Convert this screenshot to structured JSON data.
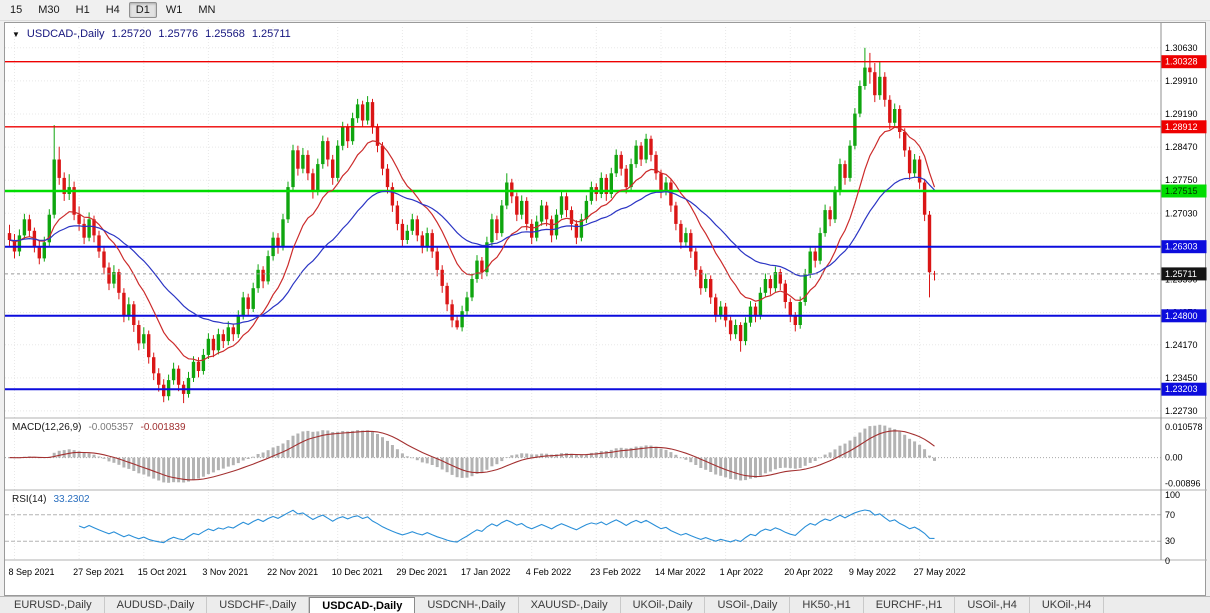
{
  "toolbar": {
    "timeframes": [
      "15",
      "M30",
      "H1",
      "H4",
      "D1",
      "W1",
      "MN"
    ],
    "active": "D1"
  },
  "icons": {
    "collapse": "▼"
  },
  "chart_header": {
    "symbol_label": "USDCAD-,Daily",
    "open": "1.25720",
    "high": "1.25776",
    "low": "1.25568",
    "close": "1.25711"
  },
  "colors": {
    "candle_up": "#0fa50f",
    "candle_down": "#da1616",
    "ma_fast": "#cc2b2b",
    "ma_slow": "#2b35c4",
    "level_red": "#ee0000",
    "level_green": "#00dd00",
    "level_blue": "#0c0cdd",
    "badge_current": "#141414",
    "macd_hist": "#b3b3b3",
    "macd_signal": "#a33030",
    "rsi_line": "#2a8fd8",
    "grid": "#e8e8e8"
  },
  "chart_data": {
    "type": "candlestick",
    "symbol": "USDCAD",
    "timeframe": "Daily",
    "title": "USDCAD-,Daily  O 1.25720  H 1.25776  L 1.25568  C 1.25711",
    "x_labels": [
      "8 Sep 2021",
      "27 Sep 2021",
      "15 Oct 2021",
      "3 Nov 2021",
      "22 Nov 2021",
      "10 Dec 2021",
      "29 Dec 2021",
      "17 Jan 2022",
      "4 Feb 2022",
      "23 Feb 2022",
      "14 Mar 2022",
      "1 Apr 2022",
      "20 Apr 2022",
      "9 May 2022",
      "27 May 2022"
    ],
    "x_label_indices": [
      1,
      14,
      27,
      40,
      53,
      66,
      79,
      92,
      105,
      118,
      131,
      144,
      157,
      170,
      183
    ],
    "price_axis": {
      "ticks": [
        "1.30630",
        "1.29910",
        "1.29190",
        "1.28470",
        "1.27750",
        "1.27030",
        "1.26310",
        "1.25590",
        "1.24870",
        "1.24170",
        "1.23450",
        "1.22730"
      ],
      "min": 1.2262,
      "max": 1.3104
    },
    "levels": [
      {
        "price": 1.30328,
        "label": "1.30328",
        "color": "red"
      },
      {
        "price": 1.28912,
        "label": "1.28912",
        "color": "red"
      },
      {
        "price": 1.27515,
        "label": "1.27515",
        "color": "green"
      },
      {
        "price": 1.26303,
        "label": "1.26303",
        "color": "blue"
      },
      {
        "price": 1.248,
        "label": "1.24800",
        "color": "blue"
      },
      {
        "price": 1.23203,
        "label": "1.23203",
        "color": "blue"
      }
    ],
    "current_price": {
      "value": 1.25711,
      "label": "1.25711"
    },
    "moving_averages": [
      {
        "name": "fast-ma",
        "type": "ema",
        "period": 13,
        "color_key": "ma_fast"
      },
      {
        "name": "slow-ma",
        "type": "ema",
        "period": 34,
        "color_key": "ma_slow"
      }
    ],
    "candles": [
      [
        1.266,
        1.2678,
        1.2632,
        1.2645
      ],
      [
        1.2645,
        1.2658,
        1.2605,
        1.262
      ],
      [
        1.262,
        1.2668,
        1.261,
        1.2655
      ],
      [
        1.2655,
        1.2702,
        1.2648,
        1.269
      ],
      [
        1.269,
        1.27,
        1.2652,
        1.2665
      ],
      [
        1.2665,
        1.2672,
        1.2618,
        1.263
      ],
      [
        1.263,
        1.2642,
        1.2592,
        1.2605
      ],
      [
        1.2605,
        1.2652,
        1.2598,
        1.264
      ],
      [
        1.264,
        1.2712,
        1.2632,
        1.27
      ],
      [
        1.27,
        1.2895,
        1.2692,
        1.282
      ],
      [
        1.282,
        1.2848,
        1.2765,
        1.278
      ],
      [
        1.278,
        1.2792,
        1.273,
        1.2745
      ],
      [
        1.2745,
        1.2788,
        1.2732,
        1.276
      ],
      [
        1.276,
        1.2772,
        1.2688,
        1.27
      ],
      [
        1.27,
        1.2718,
        1.2665,
        1.268
      ],
      [
        1.268,
        1.2692,
        1.2636,
        1.265
      ],
      [
        1.265,
        1.2705,
        1.2642,
        1.269
      ],
      [
        1.269,
        1.2698,
        1.264,
        1.2655
      ],
      [
        1.2655,
        1.2665,
        1.2606,
        1.262
      ],
      [
        1.262,
        1.2632,
        1.257,
        1.2585
      ],
      [
        1.2585,
        1.2596,
        1.2536,
        1.255
      ],
      [
        1.255,
        1.259,
        1.254,
        1.2575
      ],
      [
        1.2575,
        1.2582,
        1.2516,
        1.253
      ],
      [
        1.253,
        1.254,
        1.2466,
        1.248
      ],
      [
        1.248,
        1.252,
        1.247,
        1.2505
      ],
      [
        1.2505,
        1.2512,
        1.2445,
        1.246
      ],
      [
        1.246,
        1.247,
        1.2405,
        1.242
      ],
      [
        1.242,
        1.2455,
        1.2408,
        1.244
      ],
      [
        1.244,
        1.2448,
        1.2376,
        1.239
      ],
      [
        1.239,
        1.24,
        1.234,
        1.2355
      ],
      [
        1.2355,
        1.2366,
        1.2315,
        1.233
      ],
      [
        1.233,
        1.2342,
        1.2292,
        1.2305
      ],
      [
        1.2305,
        1.2352,
        1.2296,
        1.234
      ],
      [
        1.234,
        1.2378,
        1.233,
        1.2365
      ],
      [
        1.2365,
        1.2372,
        1.2316,
        1.233
      ],
      [
        1.233,
        1.2338,
        1.229,
        1.231
      ],
      [
        1.231,
        1.2358,
        1.2302,
        1.2345
      ],
      [
        1.2345,
        1.2392,
        1.2336,
        1.238
      ],
      [
        1.238,
        1.239,
        1.2346,
        1.236
      ],
      [
        1.236,
        1.2408,
        1.2352,
        1.2395
      ],
      [
        1.2395,
        1.2442,
        1.2386,
        1.243
      ],
      [
        1.243,
        1.2438,
        1.239,
        1.2405
      ],
      [
        1.2405,
        1.2452,
        1.2396,
        1.244
      ],
      [
        1.244,
        1.245,
        1.241,
        1.2425
      ],
      [
        1.2425,
        1.2468,
        1.2416,
        1.2455
      ],
      [
        1.2455,
        1.2462,
        1.2425,
        1.244
      ],
      [
        1.244,
        1.2492,
        1.2432,
        1.248
      ],
      [
        1.248,
        1.2532,
        1.2472,
        1.252
      ],
      [
        1.252,
        1.2528,
        1.248,
        1.2495
      ],
      [
        1.2495,
        1.2552,
        1.2488,
        1.254
      ],
      [
        1.254,
        1.2592,
        1.253,
        1.258
      ],
      [
        1.258,
        1.2588,
        1.254,
        1.2555
      ],
      [
        1.2555,
        1.2622,
        1.2548,
        1.261
      ],
      [
        1.261,
        1.2662,
        1.26,
        1.265
      ],
      [
        1.265,
        1.266,
        1.2615,
        1.263
      ],
      [
        1.263,
        1.2702,
        1.2622,
        1.269
      ],
      [
        1.269,
        1.2772,
        1.2682,
        1.276
      ],
      [
        1.276,
        1.2852,
        1.275,
        1.284
      ],
      [
        1.284,
        1.285,
        1.2785,
        1.28
      ],
      [
        1.28,
        1.2845,
        1.279,
        1.283
      ],
      [
        1.283,
        1.284,
        1.2775,
        1.279
      ],
      [
        1.279,
        1.28,
        1.2735,
        1.275
      ],
      [
        1.275,
        1.2822,
        1.2742,
        1.281
      ],
      [
        1.281,
        1.2872,
        1.28,
        1.286
      ],
      [
        1.286,
        1.2868,
        1.2805,
        1.282
      ],
      [
        1.282,
        1.283,
        1.2765,
        1.278
      ],
      [
        1.278,
        1.2862,
        1.2772,
        1.285
      ],
      [
        1.285,
        1.2902,
        1.284,
        1.289
      ],
      [
        1.289,
        1.2898,
        1.2845,
        1.286
      ],
      [
        1.286,
        1.2922,
        1.2852,
        1.291
      ],
      [
        1.291,
        1.2952,
        1.29,
        1.294
      ],
      [
        1.294,
        1.2948,
        1.289,
        1.2905
      ],
      [
        1.2905,
        1.2958,
        1.2896,
        1.2945
      ],
      [
        1.2945,
        1.2952,
        1.2876,
        1.289
      ],
      [
        1.289,
        1.2898,
        1.2836,
        1.285
      ],
      [
        1.285,
        1.2858,
        1.2786,
        1.28
      ],
      [
        1.28,
        1.281,
        1.2746,
        1.276
      ],
      [
        1.276,
        1.277,
        1.2706,
        1.272
      ],
      [
        1.272,
        1.273,
        1.2666,
        1.268
      ],
      [
        1.268,
        1.269,
        1.263,
        1.2645
      ],
      [
        1.2645,
        1.2678,
        1.2636,
        1.2665
      ],
      [
        1.2665,
        1.2702,
        1.2656,
        1.269
      ],
      [
        1.269,
        1.2698,
        1.2642,
        1.2655
      ],
      [
        1.2655,
        1.2664,
        1.2616,
        1.263
      ],
      [
        1.263,
        1.2672,
        1.262,
        1.266
      ],
      [
        1.266,
        1.2668,
        1.2606,
        1.262
      ],
      [
        1.262,
        1.263,
        1.2566,
        1.258
      ],
      [
        1.258,
        1.259,
        1.253,
        1.2545
      ],
      [
        1.2545,
        1.2552,
        1.249,
        1.2505
      ],
      [
        1.2505,
        1.2515,
        1.2455,
        1.247
      ],
      [
        1.247,
        1.248,
        1.245,
        1.2455
      ],
      [
        1.2455,
        1.2502,
        1.2446,
        1.249
      ],
      [
        1.249,
        1.2532,
        1.248,
        1.252
      ],
      [
        1.252,
        1.2572,
        1.2512,
        1.256
      ],
      [
        1.256,
        1.2612,
        1.2552,
        1.26
      ],
      [
        1.26,
        1.2608,
        1.256,
        1.2575
      ],
      [
        1.2575,
        1.2652,
        1.2566,
        1.264
      ],
      [
        1.264,
        1.2702,
        1.2632,
        1.269
      ],
      [
        1.269,
        1.2698,
        1.2645,
        1.266
      ],
      [
        1.266,
        1.2732,
        1.2652,
        1.272
      ],
      [
        1.272,
        1.279,
        1.2712,
        1.277
      ],
      [
        1.277,
        1.2778,
        1.2725,
        1.274
      ],
      [
        1.274,
        1.2748,
        1.2686,
        1.27
      ],
      [
        1.27,
        1.2742,
        1.269,
        1.273
      ],
      [
        1.273,
        1.2738,
        1.2666,
        1.268
      ],
      [
        1.268,
        1.269,
        1.2636,
        1.265
      ],
      [
        1.265,
        1.2698,
        1.2642,
        1.2685
      ],
      [
        1.2685,
        1.2732,
        1.2676,
        1.272
      ],
      [
        1.272,
        1.2728,
        1.2675,
        1.269
      ],
      [
        1.269,
        1.2698,
        1.264,
        1.2655
      ],
      [
        1.2655,
        1.2712,
        1.2646,
        1.27
      ],
      [
        1.27,
        1.2752,
        1.2692,
        1.274
      ],
      [
        1.274,
        1.2748,
        1.2695,
        1.271
      ],
      [
        1.271,
        1.2718,
        1.2666,
        1.268
      ],
      [
        1.268,
        1.2688,
        1.2636,
        1.265
      ],
      [
        1.265,
        1.2702,
        1.2642,
        1.269
      ],
      [
        1.269,
        1.2742,
        1.2682,
        1.273
      ],
      [
        1.273,
        1.2772,
        1.2722,
        1.276
      ],
      [
        1.276,
        1.2768,
        1.273,
        1.2745
      ],
      [
        1.2745,
        1.2792,
        1.2736,
        1.278
      ],
      [
        1.278,
        1.2788,
        1.273,
        1.2745
      ],
      [
        1.2745,
        1.2802,
        1.2736,
        1.279
      ],
      [
        1.279,
        1.2842,
        1.2782,
        1.283
      ],
      [
        1.283,
        1.2838,
        1.2785,
        1.28
      ],
      [
        1.28,
        1.2808,
        1.2746,
        1.276
      ],
      [
        1.276,
        1.2822,
        1.2752,
        1.281
      ],
      [
        1.281,
        1.2862,
        1.2802,
        1.285
      ],
      [
        1.285,
        1.2858,
        1.2806,
        1.282
      ],
      [
        1.282,
        1.2876,
        1.2812,
        1.2865
      ],
      [
        1.2865,
        1.2872,
        1.2816,
        1.283
      ],
      [
        1.283,
        1.2838,
        1.2776,
        1.279
      ],
      [
        1.279,
        1.2798,
        1.2736,
        1.275
      ],
      [
        1.275,
        1.2782,
        1.2742,
        1.277
      ],
      [
        1.277,
        1.2778,
        1.2706,
        1.272
      ],
      [
        1.272,
        1.2728,
        1.2666,
        1.268
      ],
      [
        1.268,
        1.2688,
        1.2626,
        1.264
      ],
      [
        1.264,
        1.2672,
        1.2632,
        1.266
      ],
      [
        1.266,
        1.2668,
        1.2606,
        1.262
      ],
      [
        1.262,
        1.2628,
        1.2566,
        1.258
      ],
      [
        1.258,
        1.2588,
        1.2526,
        1.254
      ],
      [
        1.254,
        1.2572,
        1.2532,
        1.256
      ],
      [
        1.256,
        1.2568,
        1.2506,
        1.252
      ],
      [
        1.252,
        1.2528,
        1.2466,
        1.248
      ],
      [
        1.248,
        1.2512,
        1.2472,
        1.25
      ],
      [
        1.25,
        1.2508,
        1.2456,
        1.247
      ],
      [
        1.247,
        1.2478,
        1.2426,
        1.244
      ],
      [
        1.244,
        1.2472,
        1.243,
        1.246
      ],
      [
        1.246,
        1.2466,
        1.2402,
        1.2425
      ],
      [
        1.2425,
        1.2477,
        1.2416,
        1.2465
      ],
      [
        1.2465,
        1.2512,
        1.2456,
        1.25
      ],
      [
        1.25,
        1.2508,
        1.2466,
        1.248
      ],
      [
        1.248,
        1.2542,
        1.2472,
        1.253
      ],
      [
        1.253,
        1.2572,
        1.2522,
        1.256
      ],
      [
        1.256,
        1.2568,
        1.2526,
        1.254
      ],
      [
        1.254,
        1.2587,
        1.2532,
        1.2575
      ],
      [
        1.2575,
        1.2582,
        1.2536,
        1.255
      ],
      [
        1.255,
        1.2558,
        1.2496,
        1.251
      ],
      [
        1.251,
        1.2518,
        1.2466,
        1.248
      ],
      [
        1.248,
        1.2488,
        1.2446,
        1.246
      ],
      [
        1.246,
        1.2522,
        1.2452,
        1.251
      ],
      [
        1.251,
        1.2582,
        1.2502,
        1.257
      ],
      [
        1.257,
        1.2632,
        1.2562,
        1.262
      ],
      [
        1.262,
        1.2628,
        1.2585,
        1.26
      ],
      [
        1.26,
        1.2672,
        1.2592,
        1.266
      ],
      [
        1.266,
        1.2722,
        1.2652,
        1.271
      ],
      [
        1.271,
        1.2718,
        1.2675,
        1.269
      ],
      [
        1.269,
        1.2762,
        1.2682,
        1.275
      ],
      [
        1.275,
        1.2822,
        1.2742,
        1.281
      ],
      [
        1.281,
        1.2818,
        1.2765,
        1.278
      ],
      [
        1.278,
        1.2862,
        1.2772,
        1.285
      ],
      [
        1.285,
        1.2932,
        1.2842,
        1.292
      ],
      [
        1.292,
        1.2992,
        1.2912,
        1.298
      ],
      [
        1.298,
        1.3063,
        1.2972,
        1.302
      ],
      [
        1.302,
        1.3052,
        1.2985,
        1.301
      ],
      [
        1.301,
        1.303,
        1.2945,
        1.296
      ],
      [
        1.296,
        1.3032,
        1.295,
        1.3
      ],
      [
        1.3,
        1.301,
        1.2935,
        1.295
      ],
      [
        1.295,
        1.296,
        1.2886,
        1.29
      ],
      [
        1.29,
        1.2942,
        1.289,
        1.293
      ],
      [
        1.293,
        1.2938,
        1.2866,
        1.288
      ],
      [
        1.288,
        1.2888,
        1.2826,
        1.284
      ],
      [
        1.284,
        1.2848,
        1.2776,
        1.279
      ],
      [
        1.279,
        1.2832,
        1.2782,
        1.282
      ],
      [
        1.282,
        1.2828,
        1.2756,
        1.277
      ],
      [
        1.277,
        1.2778,
        1.2686,
        1.27
      ],
      [
        1.27,
        1.2708,
        1.252,
        1.2575
      ],
      [
        1.2572,
        1.25776,
        1.25568,
        1.25711
      ]
    ],
    "macd": {
      "label": "MACD(12,26,9)",
      "value_main": "-0.005357",
      "value_signal": "-0.001839",
      "fast": 12,
      "slow": 26,
      "signal": 9,
      "axis": [
        "0.010578",
        "0.00",
        "-0.00896"
      ],
      "range": [
        -0.0108,
        0.0129
      ]
    },
    "rsi": {
      "label": "RSI(14)",
      "value": "33.2302",
      "period": 14,
      "axis": [
        "100",
        "70",
        "30",
        "0"
      ],
      "levels": [
        70,
        30
      ]
    }
  },
  "tabs": {
    "items": [
      "EURUSD-,Daily",
      "AUDUSD-,Daily",
      "USDCHF-,Daily",
      "USDCAD-,Daily",
      "USDCNH-,Daily",
      "XAUUSD-,Daily",
      "UKOil-,Daily",
      "USOil-,Daily",
      "HK50-,H1",
      "EURCHF-,H1",
      "USOil-,H4",
      "UKOil-,H4"
    ],
    "active": "USDCAD-,Daily"
  }
}
